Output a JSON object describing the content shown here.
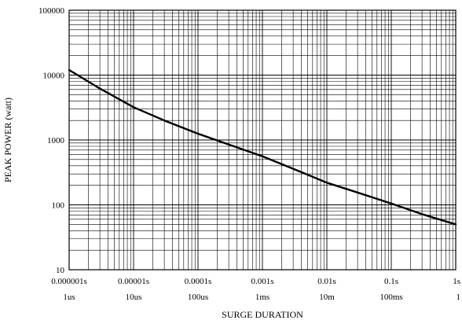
{
  "chart_data": {
    "type": "line",
    "title": "",
    "xlabel": "SURGE DURATION",
    "ylabel": "PEAK POWER (watt)",
    "x_scale": "log",
    "y_scale": "log",
    "xlim": [
      1e-06,
      1
    ],
    "ylim": [
      10,
      100000
    ],
    "grid": true,
    "x_ticks": [
      1e-06,
      1e-05,
      0.0001,
      0.001,
      0.01,
      0.1,
      1
    ],
    "x_tick_labels_top": [
      "0.000001s",
      "0.00001s",
      "0.0001s",
      "0.001s",
      "0.01s",
      "0.1s",
      "1s"
    ],
    "x_tick_labels_bottom": [
      "1us",
      "10us",
      "100us",
      "1ms",
      "10m",
      "100ms",
      "1"
    ],
    "y_ticks": [
      10,
      100,
      1000,
      10000,
      100000
    ],
    "y_tick_labels": [
      "10",
      "100",
      "1000",
      "10000",
      "100000"
    ],
    "series": [
      {
        "x": [
          1e-06,
          3e-06,
          1e-05,
          3e-05,
          0.0001,
          0.0003,
          0.001,
          0.003,
          0.01,
          0.03,
          0.1,
          0.3,
          1
        ],
        "y": [
          12000,
          6200,
          3200,
          2000,
          1250,
          850,
          560,
          360,
          220,
          155,
          105,
          72,
          50
        ]
      }
    ]
  }
}
